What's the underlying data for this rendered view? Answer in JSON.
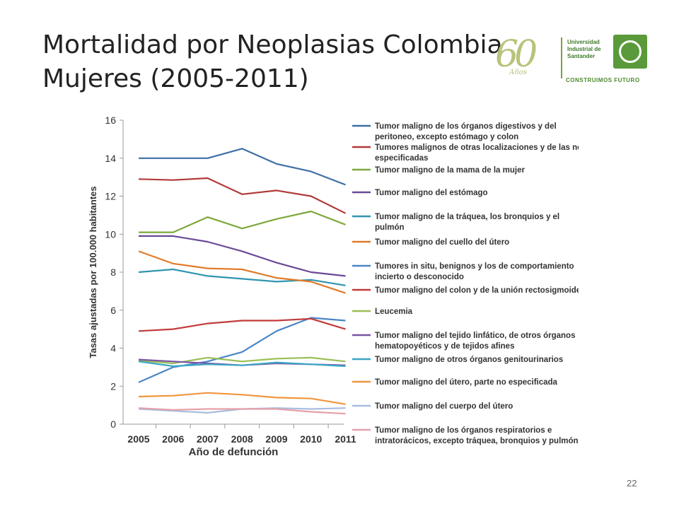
{
  "slide": {
    "title_line1": "Mortalidad por Neoplasias Colombia",
    "title_line2": "Mujeres (2005-2011)",
    "page_number": "22"
  },
  "logo": {
    "anios_number": "60",
    "anios_word": "Años",
    "university_line1": "Universidad",
    "university_line2": "Industrial de",
    "university_line3": "Santander",
    "motto": "CONSTRUIMOS FUTURO",
    "brand_color": "#5a9a3a"
  },
  "chart_data": {
    "type": "line",
    "title": "",
    "xlabel": "Año de defunción",
    "ylabel": "Tasas ajustadas por 100.000 habitantes",
    "x": [
      "2005",
      "2006",
      "2007",
      "2008",
      "2009",
      "2010",
      "2011"
    ],
    "ylim": [
      0,
      16
    ],
    "yticks": [
      0,
      2,
      4,
      6,
      8,
      10,
      12,
      14,
      16
    ],
    "grid": false,
    "legend_position": "right",
    "series": [
      {
        "name": "Tumor maligno de los órganos digestivos y del peritoneo, excepto estómago y colon",
        "color": "#3d6fa6",
        "values": [
          14.0,
          14.0,
          14.0,
          14.5,
          13.7,
          13.3,
          12.6
        ]
      },
      {
        "name": "Tumores malignos de otras localizaciones y de las no especificadas",
        "color": "#b23a3a",
        "values": [
          12.9,
          12.85,
          12.95,
          12.1,
          12.3,
          12.0,
          11.1
        ]
      },
      {
        "name": "Tumor maligno de la mama de la mujer",
        "color": "#7ea83c",
        "values": [
          10.1,
          10.1,
          10.9,
          10.3,
          10.8,
          11.2,
          10.5
        ]
      },
      {
        "name": "Tumor maligno del estómago",
        "color": "#6a4a96",
        "values": [
          9.9,
          9.9,
          9.6,
          9.1,
          8.5,
          8.0,
          7.8
        ]
      },
      {
        "name": "Tumor maligno de la tráquea, los bronquios y el pulmón",
        "color": "#2f95b0",
        "values": [
          8.0,
          8.15,
          7.8,
          7.65,
          7.5,
          7.6,
          7.3
        ]
      },
      {
        "name": "Tumor maligno del cuello del útero",
        "color": "#e07b2a",
        "values": [
          9.1,
          8.45,
          8.2,
          8.15,
          7.7,
          7.5,
          6.9
        ]
      },
      {
        "name": "Tumores in situ, benignos y los de comportamiento incierto o desconocido",
        "color": "#4a86c6",
        "values": [
          2.2,
          3.0,
          3.3,
          3.8,
          4.9,
          5.6,
          5.45
        ]
      },
      {
        "name": "Tumor maligno del colon y de la unión rectosigmoidea",
        "color": "#c23b3b",
        "values": [
          4.9,
          5.0,
          5.3,
          5.45,
          5.45,
          5.55,
          5.0
        ]
      },
      {
        "name": "Leucemia",
        "color": "#9bbf55",
        "values": [
          3.35,
          3.2,
          3.5,
          3.3,
          3.45,
          3.5,
          3.3
        ]
      },
      {
        "name": "Tumor maligno del tejido linfático, de otros órganos hematopoyéticos y de tejidos afines",
        "color": "#7a55a8",
        "values": [
          3.4,
          3.3,
          3.2,
          3.1,
          3.2,
          3.15,
          3.1
        ]
      },
      {
        "name": "Tumor maligno de otros órganos genitourinarios",
        "color": "#3aa7c4",
        "values": [
          3.3,
          3.05,
          3.15,
          3.1,
          3.25,
          3.15,
          3.05
        ]
      },
      {
        "name": "Tumor maligno del útero, parte no especificada",
        "color": "#f0963e",
        "values": [
          1.45,
          1.5,
          1.65,
          1.55,
          1.4,
          1.35,
          1.05
        ]
      },
      {
        "name": "Tumor maligno del cuerpo del útero",
        "color": "#a8bde0",
        "values": [
          0.8,
          0.7,
          0.6,
          0.8,
          0.85,
          0.8,
          0.85
        ]
      },
      {
        "name": "Tumor maligno de los órganos respiratorios e intratorácicos, excepto tráquea, bronquios y pulmón",
        "color": "#e6a0a8",
        "values": [
          0.85,
          0.75,
          0.8,
          0.8,
          0.8,
          0.65,
          0.55
        ]
      }
    ],
    "legend_lines": [
      [
        "Tumor maligno de los órganos digestivos y del",
        "peritoneo, excepto estómago y colon"
      ],
      [
        "Tumores malignos de otras localizaciones y de las no",
        "especificadas"
      ],
      [
        "Tumor maligno de la mama de la mujer"
      ],
      [
        "Tumor maligno del estómago"
      ],
      [
        "Tumor maligno de la tráquea, los bronquios y el",
        "pulmón"
      ],
      [
        "Tumor maligno del cuello del útero"
      ],
      [
        "Tumores in situ, benignos y los de comportamiento",
        "incierto o desconocido"
      ],
      [
        "Tumor maligno del colon y de la unión rectosigmoidea"
      ],
      [
        "Leucemia"
      ],
      [
        "Tumor maligno del tejido linfático, de otros órganos",
        "hematopoyéticos y de tejidos afines"
      ],
      [
        "Tumor maligno de otros órganos genitourinarios"
      ],
      [
        "Tumor maligno del útero, parte no especificada"
      ],
      [
        "Tumor maligno del cuerpo del útero"
      ],
      [
        "Tumor maligno de los órganos respiratorios e",
        "intratorácicos, excepto tráquea, bronquios y pulmón"
      ]
    ]
  }
}
